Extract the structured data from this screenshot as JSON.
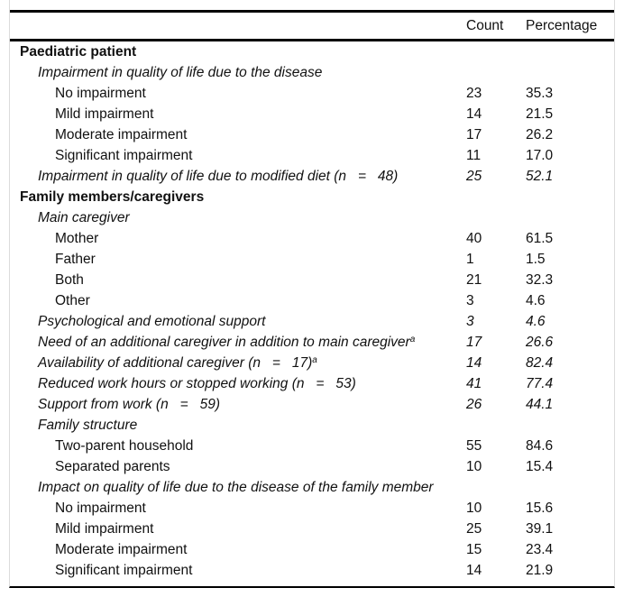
{
  "table": {
    "columns": [
      "Count",
      "Percentage"
    ],
    "colors": {
      "background": "#ffffff",
      "text": "#111111",
      "rule": "#000000",
      "frame_border": "#dcdcdc"
    },
    "rows": [
      {
        "indent": 1,
        "style": "bold",
        "label": "Paediatric patient",
        "count": "",
        "percentage": ""
      },
      {
        "indent": 2,
        "style": "italic",
        "label": "Impairment in quality of life due to the disease",
        "count": "",
        "percentage": ""
      },
      {
        "indent": 3,
        "style": "plain",
        "label": "No impairment",
        "count": "23",
        "percentage": "35.3"
      },
      {
        "indent": 3,
        "style": "plain",
        "label": "Mild impairment",
        "count": "14",
        "percentage": "21.5"
      },
      {
        "indent": 3,
        "style": "plain",
        "label": "Moderate impairment",
        "count": "17",
        "percentage": "26.2"
      },
      {
        "indent": 3,
        "style": "plain",
        "label": "Significant impairment",
        "count": "11",
        "percentage": "17.0"
      },
      {
        "indent": 2,
        "style": "italic",
        "label": "Impairment in quality of life due to modified diet (n   =   48)",
        "count": "25",
        "percentage": "52.1"
      },
      {
        "indent": 1,
        "style": "bold",
        "label": "Family members/caregivers",
        "count": "",
        "percentage": ""
      },
      {
        "indent": 2,
        "style": "italic",
        "label": "Main caregiver",
        "count": "",
        "percentage": ""
      },
      {
        "indent": 3,
        "style": "plain",
        "label": "Mother",
        "count": "40",
        "percentage": "61.5"
      },
      {
        "indent": 3,
        "style": "plain",
        "label": "Father",
        "count": "1",
        "percentage": "1.5"
      },
      {
        "indent": 3,
        "style": "plain",
        "label": "Both",
        "count": "21",
        "percentage": "32.3"
      },
      {
        "indent": 3,
        "style": "plain",
        "label": "Other",
        "count": "3",
        "percentage": "4.6"
      },
      {
        "indent": 2,
        "style": "italic",
        "label": "Psychological and emotional support",
        "count": "3",
        "percentage": "4.6"
      },
      {
        "indent": 2,
        "style": "italic",
        "label": "Need of an additional caregiver in addition to main caregiver",
        "sup": "a",
        "count": "17",
        "percentage": "26.6"
      },
      {
        "indent": 2,
        "style": "italic",
        "label": "Availability of additional caregiver (n   =   17)",
        "sup": "a",
        "count": "14",
        "percentage": "82.4"
      },
      {
        "indent": 2,
        "style": "italic",
        "label": "Reduced work hours or stopped working (n   =   53)",
        "count": "41",
        "percentage": "77.4"
      },
      {
        "indent": 2,
        "style": "italic",
        "label": "Support from work (n   =   59)",
        "count": "26",
        "percentage": "44.1"
      },
      {
        "indent": 2,
        "style": "italic",
        "label": "Family structure",
        "count": "",
        "percentage": ""
      },
      {
        "indent": 3,
        "style": "plain",
        "label": "Two-parent household",
        "count": "55",
        "percentage": "84.6"
      },
      {
        "indent": 3,
        "style": "plain",
        "label": "Separated parents",
        "count": "10",
        "percentage": "15.4"
      },
      {
        "indent": 2,
        "style": "italic",
        "label": "Impact on quality of life due to the disease of the family member",
        "count": "",
        "percentage": ""
      },
      {
        "indent": 3,
        "style": "plain",
        "label": "No impairment",
        "count": "10",
        "percentage": "15.6"
      },
      {
        "indent": 3,
        "style": "plain",
        "label": "Mild impairment",
        "count": "25",
        "percentage": "39.1"
      },
      {
        "indent": 3,
        "style": "plain",
        "label": "Moderate impairment",
        "count": "15",
        "percentage": "23.4"
      },
      {
        "indent": 3,
        "style": "plain",
        "label": "Significant impairment",
        "count": "14",
        "percentage": "21.9"
      }
    ]
  }
}
